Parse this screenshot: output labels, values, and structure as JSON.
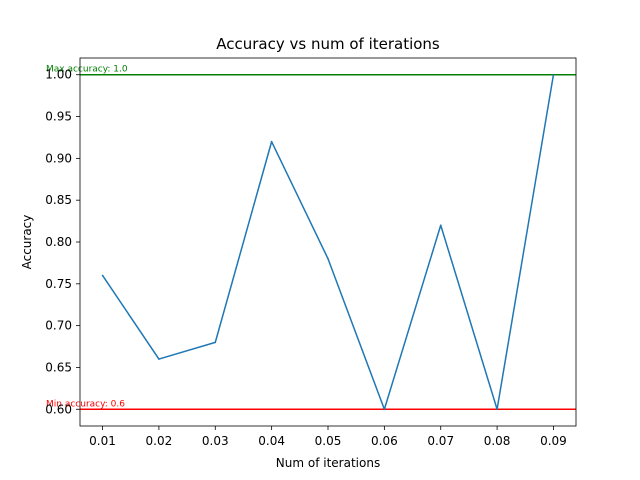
{
  "chart_data": {
    "type": "line",
    "title": "Accuracy vs num of iterations",
    "xlabel": "Num of iterations",
    "ylabel": "Accuracy",
    "x": [
      0.01,
      0.02,
      0.03,
      0.04,
      0.05,
      0.06,
      0.07,
      0.08,
      0.09
    ],
    "series": [
      {
        "values": [
          0.76,
          0.66,
          0.68,
          0.92,
          0.78,
          0.6,
          0.82,
          0.6,
          1.0
        ],
        "color": "#1f77b4"
      }
    ],
    "xlim": [
      0.006,
      0.094
    ],
    "ylim": [
      0.58,
      1.02
    ],
    "x_ticks": [
      "0.01",
      "0.02",
      "0.03",
      "0.04",
      "0.05",
      "0.06",
      "0.07",
      "0.08",
      "0.09"
    ],
    "y_ticks": [
      "0.60",
      "0.65",
      "0.70",
      "0.75",
      "0.80",
      "0.85",
      "0.90",
      "0.95",
      "1.00"
    ],
    "grid": false,
    "reference_lines": [
      {
        "value": 1.0,
        "label": "Max accuracy: 1.0",
        "color": "#008000"
      },
      {
        "value": 0.6,
        "label": "Min accuracy: 0.6",
        "color": "#ff0000"
      }
    ]
  }
}
